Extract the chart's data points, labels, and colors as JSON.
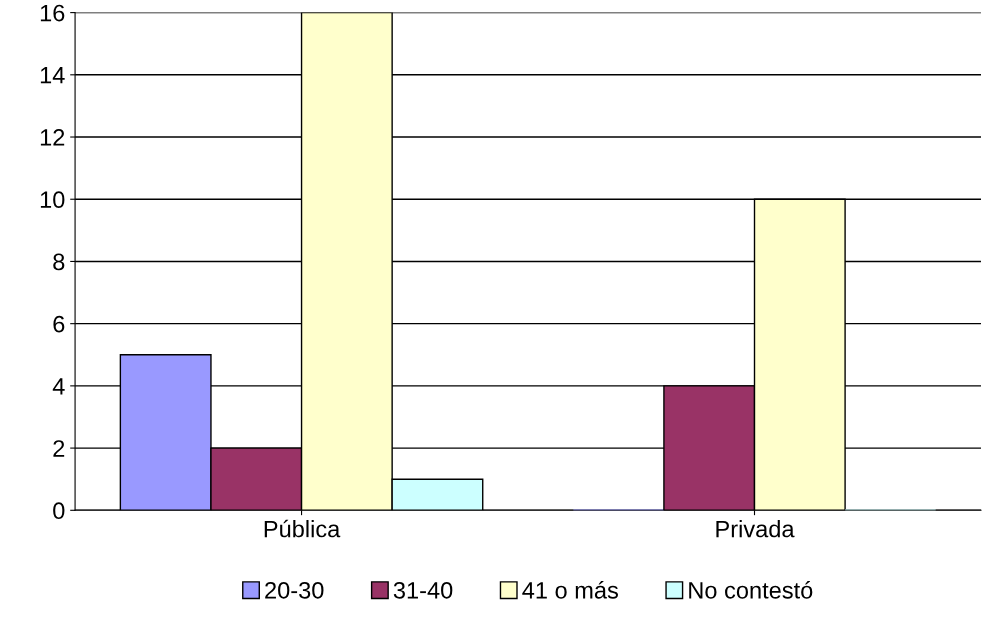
{
  "chart_data": {
    "type": "bar",
    "categories": [
      "Pública",
      "Privada"
    ],
    "series": [
      {
        "name": "20-30",
        "color": "#9999ff",
        "values": [
          5,
          0
        ]
      },
      {
        "name": "31-40",
        "color": "#993366",
        "values": [
          2,
          4
        ]
      },
      {
        "name": "41 o más",
        "color": "#ffffcc",
        "values": [
          16,
          10
        ]
      },
      {
        "name": "No contestó",
        "color": "#ccffff",
        "values": [
          1,
          0
        ]
      }
    ],
    "ylim": [
      0,
      16
    ],
    "yticks": [
      0,
      2,
      4,
      6,
      8,
      10,
      12,
      14,
      16
    ],
    "grid": "y",
    "legend": "bottom"
  }
}
